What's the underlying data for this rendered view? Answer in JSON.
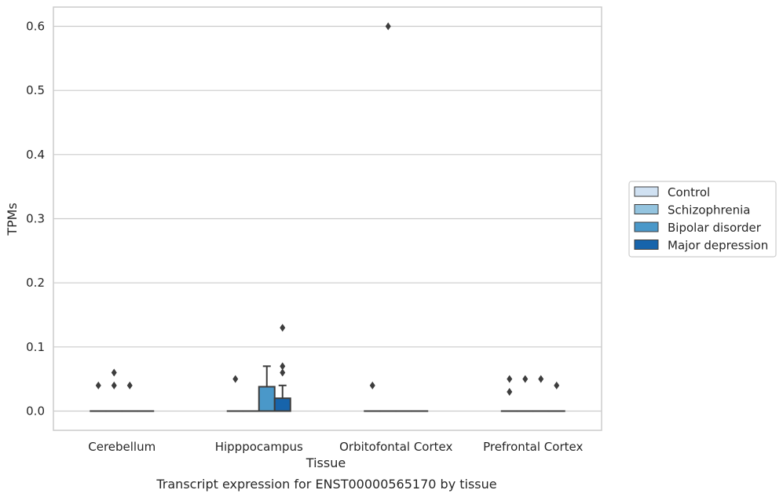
{
  "chart_data": {
    "type": "box",
    "xlabel": "Tissue",
    "ylabel": "TPMs",
    "caption": "Transcript expression for ENST00000565170 by tissue",
    "ylim": [
      -0.03,
      0.63
    ],
    "yticks": [
      "0.0",
      "0.1",
      "0.2",
      "0.3",
      "0.4",
      "0.5",
      "0.6"
    ],
    "grid": "horizontal",
    "legend_position": "right",
    "categories": [
      "Cerebellum",
      "Hipppocampus",
      "Orbitofontal Cortex",
      "Prefrontal Cortex"
    ],
    "series": [
      {
        "name": "Control",
        "color": "#d0e1f2",
        "boxes": [
          {
            "q1": 0,
            "median": 0,
            "q3": 0,
            "whisker_low": 0,
            "whisker_high": 0,
            "outliers": [
              0.04
            ]
          },
          {
            "q1": 0,
            "median": 0,
            "q3": 0,
            "whisker_low": 0,
            "whisker_high": 0,
            "outliers": [
              0.05
            ]
          },
          {
            "q1": 0,
            "median": 0,
            "q3": 0,
            "whisker_low": 0,
            "whisker_high": 0,
            "outliers": [
              0.04
            ]
          },
          {
            "q1": 0,
            "median": 0,
            "q3": 0,
            "whisker_low": 0,
            "whisker_high": 0,
            "outliers": [
              0.05,
              0.03
            ]
          }
        ]
      },
      {
        "name": "Schizophrenia",
        "color": "#94c4df",
        "boxes": [
          {
            "q1": 0,
            "median": 0,
            "q3": 0,
            "whisker_low": 0,
            "whisker_high": 0,
            "outliers": [
              0.06,
              0.04
            ]
          },
          {
            "q1": 0,
            "median": 0,
            "q3": 0,
            "whisker_low": 0,
            "whisker_high": 0,
            "outliers": []
          },
          {
            "q1": 0,
            "median": 0,
            "q3": 0,
            "whisker_low": 0,
            "whisker_high": 0,
            "outliers": [
              0.6
            ]
          },
          {
            "q1": 0,
            "median": 0,
            "q3": 0,
            "whisker_low": 0,
            "whisker_high": 0,
            "outliers": [
              0.05
            ]
          }
        ]
      },
      {
        "name": "Bipolar disorder",
        "color": "#4a98c9",
        "boxes": [
          {
            "q1": 0,
            "median": 0,
            "q3": 0,
            "whisker_low": 0,
            "whisker_high": 0,
            "outliers": [
              0.04
            ]
          },
          {
            "q1": 0,
            "median": 0,
            "q3": 0.038,
            "whisker_low": 0,
            "whisker_high": 0.07,
            "outliers": []
          },
          {
            "q1": 0,
            "median": 0,
            "q3": 0,
            "whisker_low": 0,
            "whisker_high": 0,
            "outliers": []
          },
          {
            "q1": 0,
            "median": 0,
            "q3": 0,
            "whisker_low": 0,
            "whisker_high": 0,
            "outliers": [
              0.05
            ]
          }
        ]
      },
      {
        "name": "Major depression",
        "color": "#1764ab",
        "boxes": [
          {
            "q1": 0,
            "median": 0,
            "q3": 0,
            "whisker_low": 0,
            "whisker_high": 0,
            "outliers": []
          },
          {
            "q1": 0,
            "median": 0,
            "q3": 0.02,
            "whisker_low": 0,
            "whisker_high": 0.04,
            "outliers": [
              0.06,
              0.07,
              0.13
            ]
          },
          {
            "q1": 0,
            "median": 0,
            "q3": 0,
            "whisker_low": 0,
            "whisker_high": 0,
            "outliers": []
          },
          {
            "q1": 0,
            "median": 0,
            "q3": 0,
            "whisker_low": 0,
            "whisker_high": 0,
            "outliers": [
              0.04
            ]
          }
        ]
      }
    ]
  }
}
